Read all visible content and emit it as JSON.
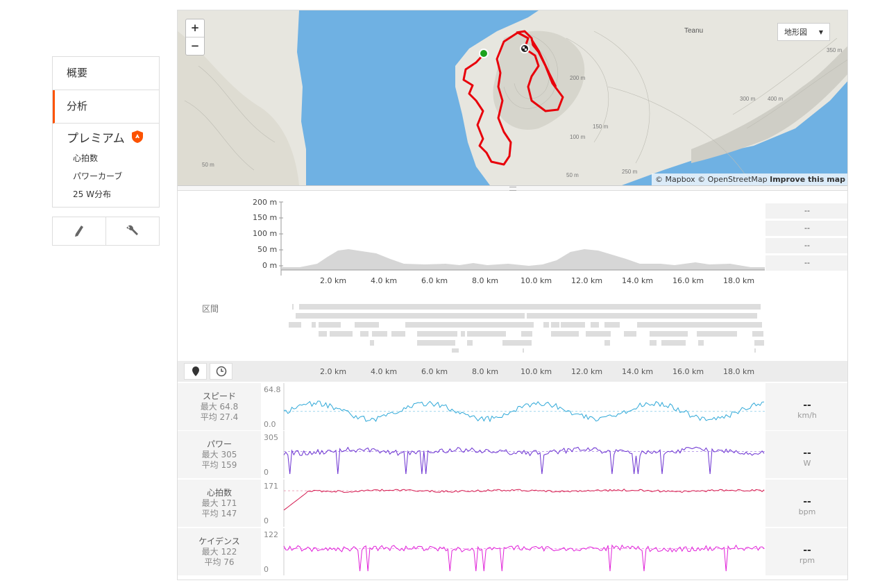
{
  "sidebar": {
    "items": [
      {
        "label": "概要"
      },
      {
        "label": "分析"
      }
    ],
    "premium": {
      "title": "プレミアム",
      "items": [
        {
          "label": "心拍数"
        },
        {
          "label": "パワーカーブ"
        },
        {
          "label": "25 W分布"
        }
      ]
    },
    "tools": [
      "pencil-icon",
      "wrench-icon"
    ]
  },
  "map": {
    "zoom_in": "+",
    "zoom_out": "−",
    "style_select": "地形図",
    "place_label": "Teanu",
    "contour_labels": [
      "50 m",
      "100 m",
      "150 m",
      "200 m",
      "250 m",
      "300 m",
      "350 m",
      "400 m"
    ],
    "attribution": {
      "mapbox": "© Mapbox",
      "osm": "© OpenStreetMap",
      "improve": "Improve this map"
    },
    "colors": {
      "water": "#6fb1e3",
      "land": "#e7e6df",
      "route": "#e8000b",
      "start": "#1da21d"
    }
  },
  "elevation": {
    "y_ticks": [
      "200 m",
      "150 m",
      "100 m",
      "50 m",
      "0 m"
    ],
    "x_ticks": [
      "2.0 km",
      "4.0 km",
      "6.0 km",
      "8.0 km",
      "10.0 km",
      "12.0 km",
      "14.0 km",
      "16.0 km",
      "18.0 km"
    ],
    "stats": [
      "--",
      "--",
      "--",
      "--"
    ],
    "segments_label": "区間"
  },
  "streams_axis": {
    "x_ticks": [
      "2.0 km",
      "4.0 km",
      "6.0 km",
      "8.0 km",
      "10.0 km",
      "12.0 km",
      "14.0 km",
      "16.0 km",
      "18.0 km"
    ]
  },
  "streams": [
    {
      "name": "スピード",
      "max": "最大 64.8",
      "avg": "平均 27.4",
      "ymax": "64.8",
      "ymin": "0.0",
      "value": "--",
      "unit": "km/h",
      "color": "#2ea8d8"
    },
    {
      "name": "パワー",
      "max": "最大 305",
      "avg": "平均 159",
      "ymax": "305",
      "ymin": "0",
      "value": "--",
      "unit": "W",
      "color": "#6a2fd1"
    },
    {
      "name": "心拍数",
      "max": "最大 171",
      "avg": "平均 147",
      "ymax": "171",
      "ymin": "0",
      "value": "--",
      "unit": "bpm",
      "color": "#d4184f"
    },
    {
      "name": "ケイデンス",
      "max": "最大 122",
      "avg": "平均 76",
      "ymax": "122",
      "ymin": "0",
      "value": "--",
      "unit": "rpm",
      "color": "#e01fd8"
    }
  ]
}
